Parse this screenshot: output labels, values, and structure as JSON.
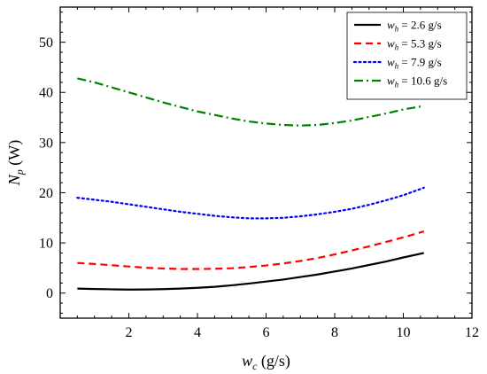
{
  "chart_data": {
    "type": "line",
    "xlabel": {
      "var": "w",
      "sub": "c",
      "unit": " (g/s)"
    },
    "ylabel": {
      "var": "N",
      "sub": "p",
      "unit": " (W)"
    },
    "xlim": [
      0,
      12
    ],
    "ylim": [
      -5,
      57
    ],
    "xticks": [
      2,
      4,
      6,
      8,
      10,
      12
    ],
    "yticks": [
      0,
      10,
      20,
      30,
      40,
      50
    ],
    "legend_position": "top-right",
    "grid": false,
    "series": [
      {
        "name": "w_h = 2.6 g/s",
        "legend": {
          "var": "w",
          "sub": "h",
          "rest": " = 2.6 g/s"
        },
        "color": "#000000",
        "dash": "solid",
        "x": [
          0.5,
          1,
          1.5,
          2,
          2.5,
          3,
          3.5,
          4,
          4.5,
          5,
          5.5,
          6,
          6.5,
          7,
          7.5,
          8,
          8.5,
          9,
          9.5,
          10,
          10.6
        ],
        "y": [
          0.9,
          0.8,
          0.75,
          0.7,
          0.72,
          0.78,
          0.9,
          1.05,
          1.25,
          1.55,
          1.9,
          2.3,
          2.7,
          3.2,
          3.7,
          4.3,
          4.9,
          5.6,
          6.3,
          7.1,
          8.0
        ]
      },
      {
        "name": "w_h = 5.3 g/s",
        "legend": {
          "var": "w",
          "sub": "h",
          "rest": " = 5.3 g/s"
        },
        "color": "#ff0000",
        "dash": "dashed",
        "x": [
          0.5,
          1,
          1.5,
          2,
          2.5,
          3,
          3.5,
          4,
          4.5,
          5,
          5.5,
          6,
          6.5,
          7,
          7.5,
          8,
          8.5,
          9,
          9.5,
          10,
          10.6
        ],
        "y": [
          6.0,
          5.8,
          5.55,
          5.3,
          5.05,
          4.9,
          4.8,
          4.8,
          4.85,
          4.95,
          5.2,
          5.5,
          5.9,
          6.4,
          7.0,
          7.7,
          8.5,
          9.3,
          10.2,
          11.1,
          12.3
        ]
      },
      {
        "name": "w_h = 7.9 g/s",
        "legend": {
          "var": "w",
          "sub": "h",
          "rest": " = 7.9 g/s"
        },
        "color": "#0000ff",
        "dash": "dotted",
        "x": [
          0.5,
          1,
          1.5,
          2,
          2.5,
          3,
          3.5,
          4,
          4.5,
          5,
          5.5,
          6,
          6.5,
          7,
          7.5,
          8,
          8.5,
          9,
          9.5,
          10,
          10.6
        ],
        "y": [
          19.0,
          18.6,
          18.2,
          17.7,
          17.2,
          16.7,
          16.2,
          15.8,
          15.4,
          15.1,
          14.9,
          14.9,
          15.0,
          15.3,
          15.7,
          16.2,
          16.8,
          17.6,
          18.5,
          19.5,
          21.0
        ]
      },
      {
        "name": "w_h = 10.6 g/s",
        "legend": {
          "var": "w",
          "sub": "h",
          "rest": " = 10.6 g/s"
        },
        "color": "#008000",
        "dash": "dashdot",
        "x": [
          0.5,
          1,
          1.5,
          2,
          2.5,
          3,
          3.5,
          4,
          4.5,
          5,
          5.5,
          6,
          6.5,
          7,
          7.5,
          8,
          8.5,
          9,
          9.5,
          10,
          10.6
        ],
        "y": [
          42.8,
          42.0,
          41.0,
          40.0,
          39.0,
          38.0,
          37.1,
          36.2,
          35.5,
          34.8,
          34.2,
          33.8,
          33.5,
          33.4,
          33.5,
          33.9,
          34.4,
          35.1,
          35.8,
          36.6,
          37.3
        ]
      }
    ]
  }
}
